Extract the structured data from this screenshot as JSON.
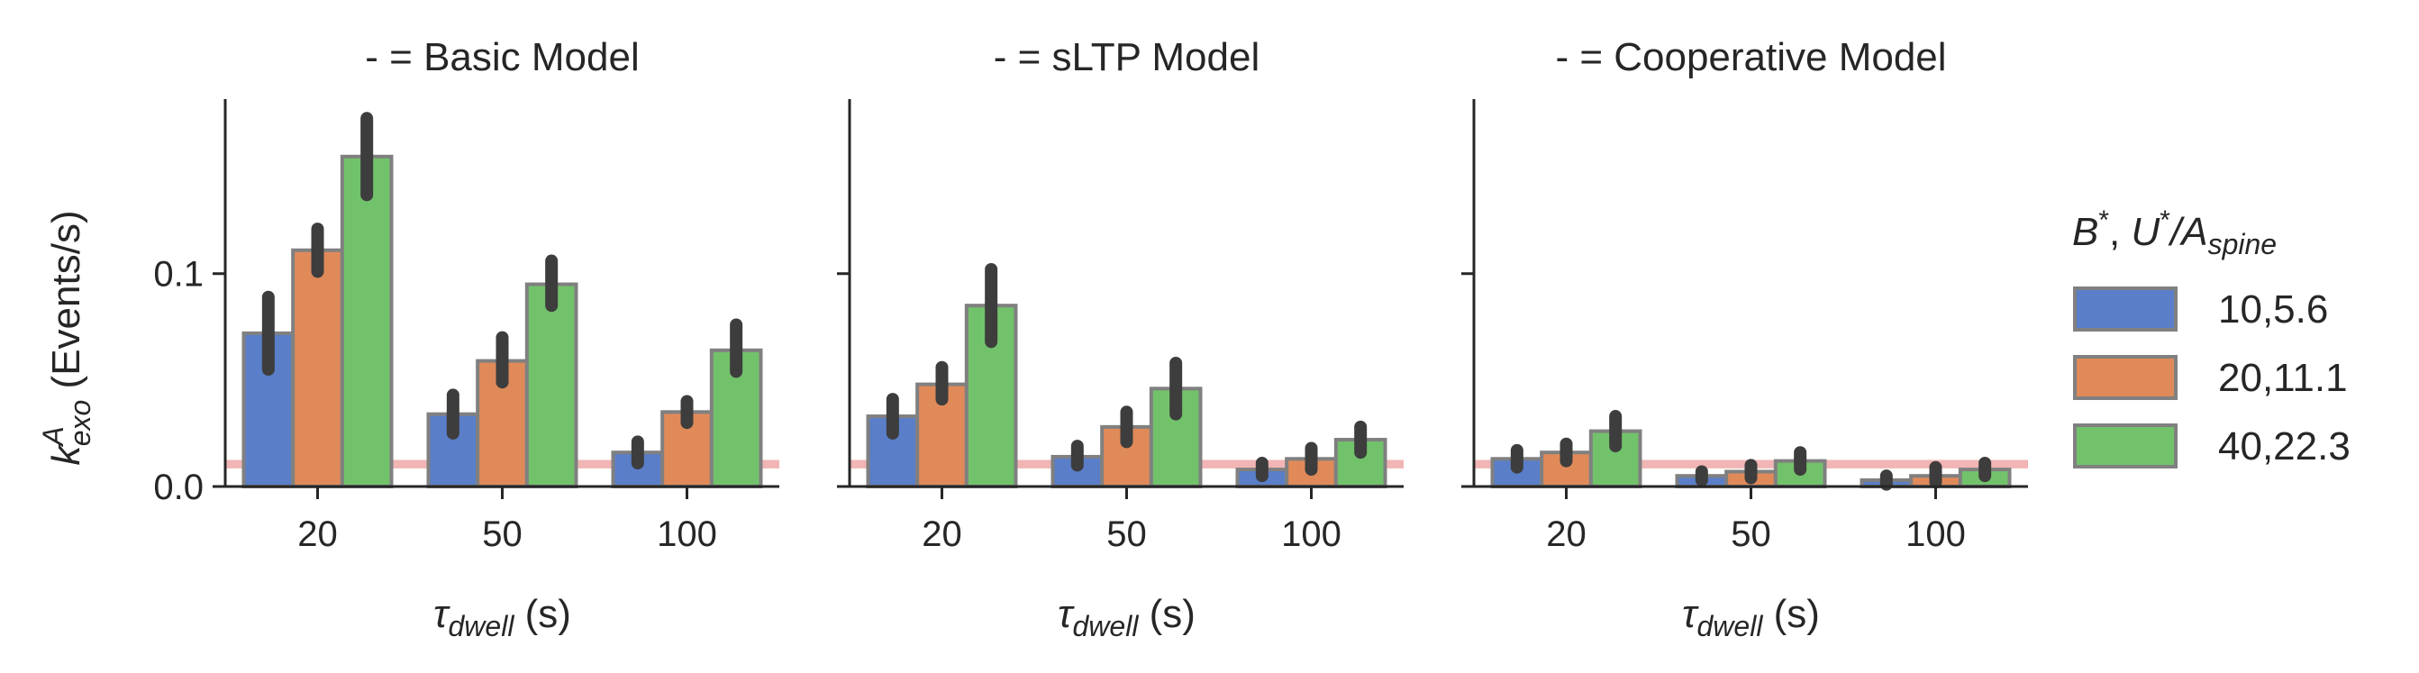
{
  "chart_data": {
    "type": "bar",
    "colors": {
      "series": [
        "#5a7ec8",
        "#e08a5a",
        "#72c26b"
      ],
      "bar_edge": "#808080",
      "error_bar": "#3d3d3d",
      "reference_band": "#f0a8a8",
      "axis": "#262626"
    },
    "shared": {
      "categories": [
        "20",
        "50",
        "100"
      ],
      "ylim": [
        0,
        0.182
      ],
      "yticks": [
        0.0,
        0.1
      ],
      "ytick_labels": [
        "0.0",
        "0.1"
      ],
      "reference_band": [
        0.0085,
        0.0125
      ],
      "x_label": {
        "base": "τ",
        "subscript": "dwell",
        "suffix": " (s)"
      },
      "y_label": {
        "base": "k",
        "subscript": "exo",
        "superscript": "A",
        "suffix": " (Events/s)"
      }
    },
    "legend": {
      "title": {
        "b": "B",
        "comma": ", ",
        "u": "U",
        "slash": "/",
        "a": "A",
        "sub": "spine"
      },
      "position": "right",
      "entries": [
        "10,5.6",
        "20,11.1",
        "40,22.3"
      ]
    },
    "panels": [
      {
        "title": "- = Basic Model",
        "series": [
          {
            "name": "10,5.6",
            "values": [
              0.072,
              0.034,
              0.016
            ],
            "err_low": [
              0.055,
              0.025,
              0.011
            ],
            "err_high": [
              0.089,
              0.043,
              0.021
            ]
          },
          {
            "name": "20,11.1",
            "values": [
              0.111,
              0.059,
              0.035
            ],
            "err_low": [
              0.101,
              0.049,
              0.03
            ],
            "err_high": [
              0.121,
              0.07,
              0.04
            ]
          },
          {
            "name": "40,22.3",
            "values": [
              0.155,
              0.095,
              0.064
            ],
            "err_low": [
              0.137,
              0.085,
              0.054
            ],
            "err_high": [
              0.173,
              0.106,
              0.076
            ]
          }
        ]
      },
      {
        "title": "- = sLTP Model",
        "series": [
          {
            "name": "10,5.6",
            "values": [
              0.033,
              0.014,
              0.008
            ],
            "err_low": [
              0.025,
              0.01,
              0.005
            ],
            "err_high": [
              0.041,
              0.019,
              0.011
            ]
          },
          {
            "name": "20,11.1",
            "values": [
              0.048,
              0.028,
              0.013
            ],
            "err_low": [
              0.041,
              0.021,
              0.008
            ],
            "err_high": [
              0.056,
              0.035,
              0.018
            ]
          },
          {
            "name": "40,22.3",
            "values": [
              0.085,
              0.046,
              0.022
            ],
            "err_low": [
              0.068,
              0.034,
              0.016
            ],
            "err_high": [
              0.102,
              0.058,
              0.028
            ]
          }
        ]
      },
      {
        "title": "- = Cooperative Model",
        "series": [
          {
            "name": "10,5.6",
            "values": [
              0.013,
              0.005,
              0.003
            ],
            "err_low": [
              0.009,
              0.003,
              0.001
            ],
            "err_high": [
              0.017,
              0.007,
              0.005
            ]
          },
          {
            "name": "20,11.1",
            "values": [
              0.016,
              0.007,
              0.005
            ],
            "err_low": [
              0.012,
              0.004,
              0.002
            ],
            "err_high": [
              0.02,
              0.01,
              0.009
            ]
          },
          {
            "name": "40,22.3",
            "values": [
              0.026,
              0.012,
              0.008
            ],
            "err_low": [
              0.019,
              0.008,
              0.005
            ],
            "err_high": [
              0.033,
              0.016,
              0.011
            ]
          }
        ]
      }
    ]
  }
}
